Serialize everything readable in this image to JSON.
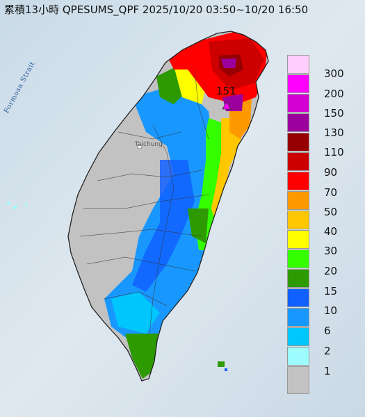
{
  "map": {
    "title": "累積13小時 QPESUMS_QPF 2025/10/20 03:50~10/20 16:50",
    "strait_label": "Formosa Strait",
    "city_label": "Taichung",
    "max_value_label": "151"
  },
  "legend": {
    "levels": [
      {
        "label": "300",
        "color": "#fecdfe"
      },
      {
        "label": "200",
        "color": "#fe00fe"
      },
      {
        "label": "150",
        "color": "#d400d4"
      },
      {
        "label": "130",
        "color": "#9c009c"
      },
      {
        "label": "110",
        "color": "#960000"
      },
      {
        "label": "90",
        "color": "#cd0000"
      },
      {
        "label": "70",
        "color": "#fe0000"
      },
      {
        "label": "50",
        "color": "#fe9a00"
      },
      {
        "label": "40",
        "color": "#fec700"
      },
      {
        "label": "30",
        "color": "#fefe00"
      },
      {
        "label": "20",
        "color": "#33ff00"
      },
      {
        "label": "15",
        "color": "#2c9a00"
      },
      {
        "label": "10",
        "color": "#1060ff"
      },
      {
        "label": "6",
        "color": "#1898fe"
      },
      {
        "label": "2",
        "color": "#00c6fe"
      },
      {
        "label": "1",
        "color": "#9cfcfe"
      },
      {
        "label": "",
        "color": "#c2c2c2"
      }
    ]
  }
}
